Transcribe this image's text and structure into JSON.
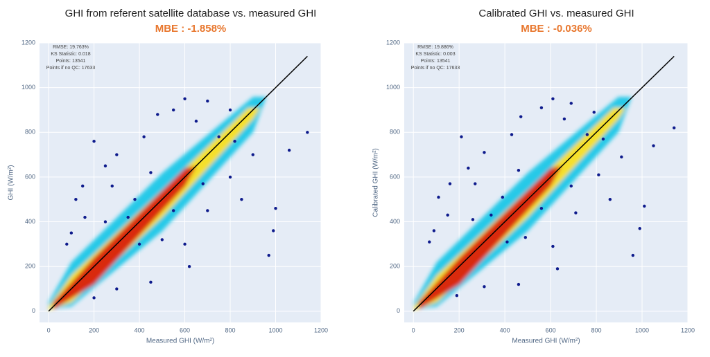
{
  "chart_data": [
    {
      "type": "scatter",
      "title": "GHI from referent satellite database vs. measured GHI",
      "subtitle": "MBE : -1.858%",
      "xlabel": "Measured GHI (W/m²)",
      "ylabel": "GHI (W/m²)",
      "annotations": [
        "RMSE: 19.763%",
        "KS Statistic: 0.018",
        "Points: 13541",
        "Points if no QC: 17633"
      ],
      "xlim": [
        -40,
        1200
      ],
      "ylim": [
        -50,
        1200
      ],
      "xticks": [
        0,
        200,
        400,
        600,
        800,
        1000,
        1200
      ],
      "yticks": [
        0,
        200,
        400,
        600,
        800,
        1000,
        1200
      ],
      "grid": true,
      "series": [
        {
          "color": "#0d1a8c",
          "x": [
            120,
            150,
            250,
            200,
            300,
            420,
            480,
            550,
            600,
            700,
            800,
            650,
            160,
            280,
            80,
            100,
            400,
            500,
            600,
            700,
            800,
            850,
            900,
            1000,
            990,
            970,
            1140,
            1060,
            620,
            450,
            300,
            200,
            350,
            450,
            750,
            820,
            550,
            680,
            380,
            250
          ],
          "values": [
            500,
            560,
            650,
            760,
            700,
            780,
            880,
            900,
            950,
            940,
            900,
            850,
            420,
            560,
            300,
            350,
            300,
            320,
            300,
            450,
            600,
            500,
            700,
            460,
            360,
            250,
            800,
            720,
            200,
            130,
            100,
            60,
            420,
            620,
            780,
            760,
            450,
            570,
            500,
            400
          ]
        },
        {
          "color": "#000000",
          "style": "line",
          "x": [
            0,
            1140
          ],
          "values": [
            0,
            1140
          ]
        }
      ]
    },
    {
      "type": "scatter",
      "title": "Calibrated GHI vs. measured GHI",
      "subtitle": "MBE : -0.036%",
      "xlabel": "Measured GHI (W/m²)",
      "ylabel": "Calibrated GHI (W/m²)",
      "annotations": [
        "RMSE: 19.886%",
        "KS Statistic: 0.003",
        "Points: 13541",
        "Points if no QC: 17633"
      ],
      "xlim": [
        -40,
        1200
      ],
      "ylim": [
        -50,
        1200
      ],
      "xticks": [
        0,
        200,
        400,
        600,
        800,
        1000,
        1200
      ],
      "yticks": [
        0,
        200,
        400,
        600,
        800,
        1000,
        1200
      ],
      "grid": true,
      "series": [
        {
          "color": "#0d1a8c",
          "x": [
            110,
            160,
            240,
            210,
            310,
            430,
            470,
            560,
            610,
            690,
            790,
            660,
            150,
            270,
            70,
            90,
            410,
            490,
            610,
            710,
            810,
            860,
            910,
            1010,
            990,
            960,
            1140,
            1050,
            630,
            460,
            310,
            190,
            340,
            460,
            760,
            830,
            560,
            690,
            390,
            260
          ],
          "values": [
            510,
            570,
            640,
            780,
            710,
            790,
            870,
            910,
            950,
            930,
            890,
            860,
            430,
            570,
            310,
            360,
            310,
            330,
            290,
            440,
            610,
            500,
            690,
            470,
            370,
            250,
            820,
            740,
            190,
            120,
            110,
            70,
            430,
            630,
            790,
            770,
            460,
            560,
            510,
            410
          ]
        },
        {
          "color": "#000000",
          "style": "line",
          "x": [
            0,
            1140
          ],
          "values": [
            0,
            1140
          ]
        }
      ]
    }
  ]
}
